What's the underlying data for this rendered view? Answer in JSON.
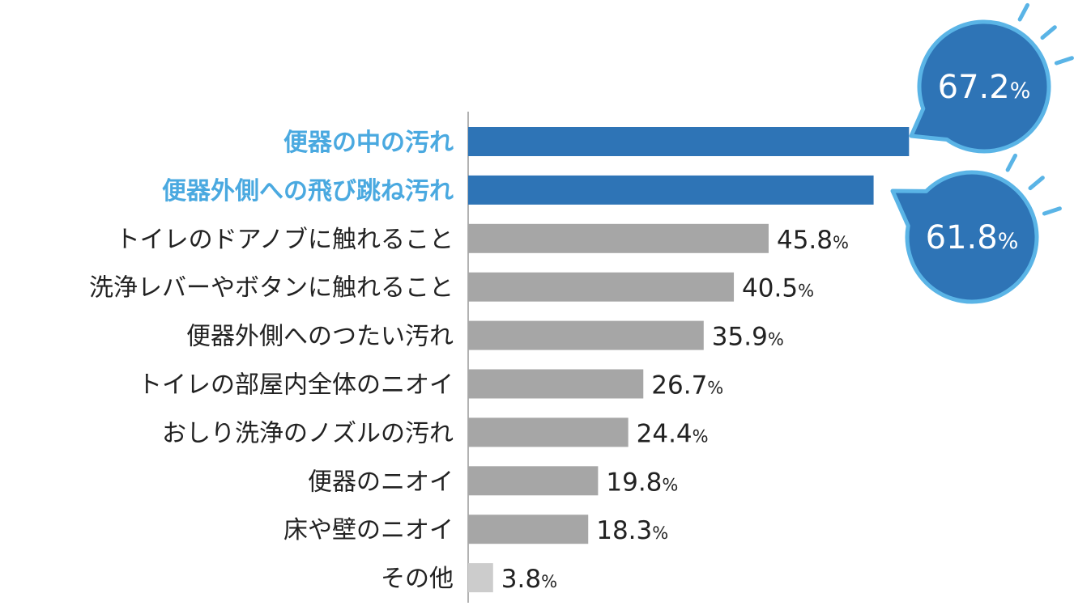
{
  "chart_data": {
    "type": "bar",
    "orientation": "horizontal",
    "categories": [
      "便器の中の汚れ",
      "便器外側への飛び跳ね汚れ",
      "トイレのドアノブに触れること",
      "洗浄レバーやボタンに触れること",
      "便器外側へのつたい汚れ",
      "トイレの部屋内全体のニオイ",
      "おしり洗浄のノズルの汚れ",
      "便器のニオイ",
      "床や壁のニオイ",
      "その他"
    ],
    "values": [
      67.2,
      61.8,
      45.8,
      40.5,
      35.9,
      26.7,
      24.4,
      19.8,
      18.3,
      3.8
    ],
    "highlighted": [
      true,
      true,
      false,
      false,
      false,
      false,
      false,
      false,
      false,
      false
    ],
    "unit": "%",
    "title": "",
    "xlabel": "",
    "ylabel": "",
    "xlim": [
      0,
      70
    ],
    "grid": false,
    "colors": {
      "highlight": "#2e74b6",
      "highlight_label": "#4aa9e0",
      "bubble_border": "#5ab4e6",
      "normal": "#a6a6a6",
      "other": "#cccccc",
      "text": "#222222",
      "axis": "#999999"
    }
  }
}
